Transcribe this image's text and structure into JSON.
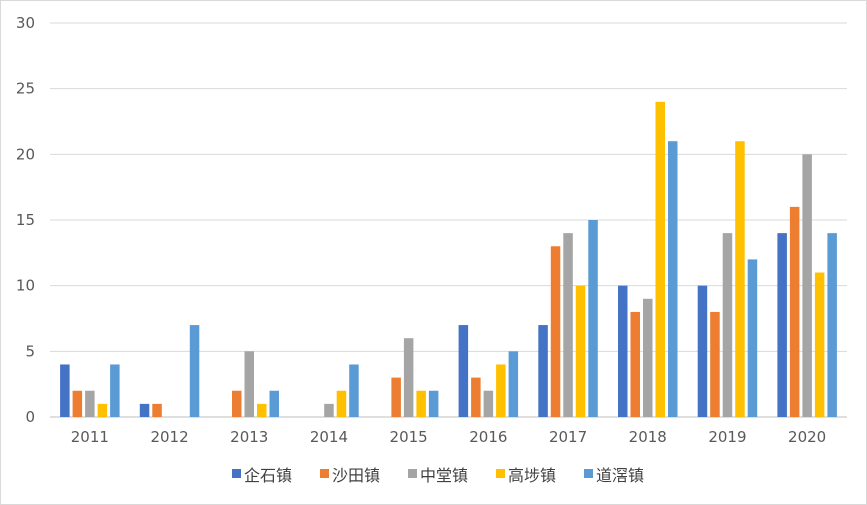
{
  "chart_data": {
    "type": "bar",
    "title": "",
    "xlabel": "",
    "ylabel": "",
    "categories": [
      "2011",
      "2012",
      "2013",
      "2014",
      "2015",
      "2016",
      "2017",
      "2018",
      "2019",
      "2020"
    ],
    "ylim": [
      0,
      30
    ],
    "yticks": [
      0,
      5,
      10,
      15,
      20,
      25,
      30
    ],
    "grid": true,
    "legend_position": "bottom",
    "series": [
      {
        "name": "企石镇",
        "color": "#4472c4",
        "values": [
          4,
          1,
          0,
          0,
          0,
          7,
          7,
          10,
          10,
          14
        ]
      },
      {
        "name": "沙田镇",
        "color": "#ed7d31",
        "values": [
          2,
          1,
          2,
          0,
          3,
          3,
          13,
          8,
          8,
          16
        ]
      },
      {
        "name": "中堂镇",
        "color": "#a5a5a5",
        "values": [
          2,
          0,
          5,
          1,
          6,
          2,
          14,
          9,
          14,
          20
        ]
      },
      {
        "name": "高埗镇",
        "color": "#ffc000",
        "values": [
          1,
          0,
          1,
          2,
          2,
          4,
          10,
          24,
          21,
          11
        ]
      },
      {
        "name": "道滘镇",
        "color": "#5b9bd5",
        "values": [
          4,
          7,
          2,
          4,
          2,
          5,
          15,
          21,
          12,
          14
        ]
      }
    ]
  }
}
